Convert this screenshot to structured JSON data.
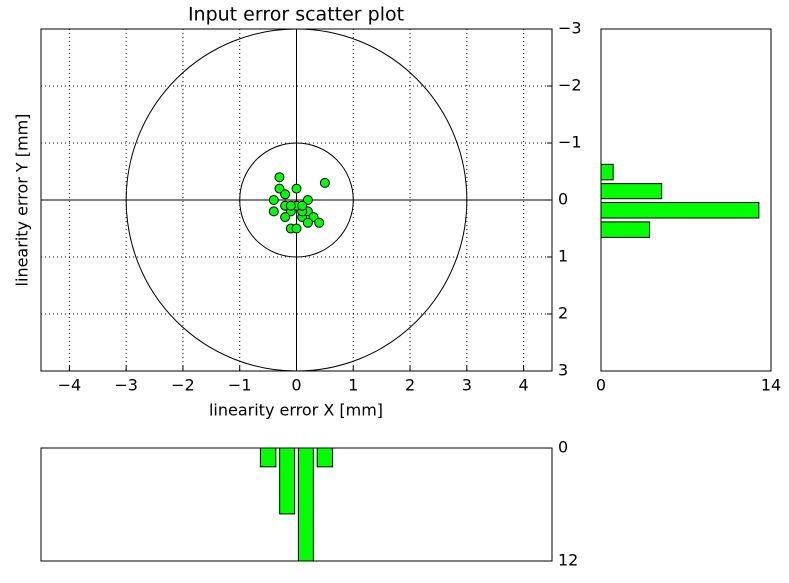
{
  "chart_data": [
    {
      "type": "scatter",
      "title": "Input error scatter plot",
      "x_label": "linearity error X [mm]",
      "y_label": "linearity error Y [mm]",
      "x": [
        -0.3,
        -0.3,
        -0.2,
        0,
        0.5,
        -0.4,
        -0.4,
        -0.2,
        0,
        -0.1,
        -0.2,
        0.1,
        0.2,
        0.2,
        0.3,
        0.4,
        0.2,
        -0.1,
        0,
        0.1,
        0,
        0.1,
        -0.1
      ],
      "y": [
        -0.4,
        -0.2,
        -0.1,
        -0.2,
        -0.3,
        0,
        0.2,
        0.1,
        0.1,
        0.2,
        0.3,
        0.3,
        0,
        0.2,
        0.3,
        0.4,
        0.4,
        0.5,
        0.5,
        0.2,
        0.1,
        0.1,
        0.1
      ],
      "color": "#00ff00",
      "reference_circles": [
        1,
        3
      ],
      "xlim": [
        -4.5,
        4.5
      ],
      "ylim": [
        -3,
        3
      ],
      "y_inverted": true,
      "xticks": [
        {
          "value": -4,
          "label": "−4"
        },
        {
          "value": -3,
          "label": "−3"
        },
        {
          "value": -2,
          "label": "−2"
        },
        {
          "value": -1,
          "label": "−1"
        },
        0,
        1,
        2,
        3,
        4
      ],
      "yticks": [
        {
          "value": -3,
          "label": "−3"
        },
        {
          "value": -2,
          "label": "−2"
        },
        {
          "value": -1,
          "label": "−1"
        },
        0,
        1,
        2,
        3
      ],
      "grid": true
    },
    {
      "type": "histogram",
      "orientation": "horizontal",
      "bins": [
        -0.66,
        -0.32,
        0.01,
        0.35,
        0.69
      ],
      "values": [
        1,
        5,
        13,
        4
      ],
      "color": "#00ff00",
      "xlim": [
        0,
        14
      ],
      "xticks": [
        0,
        14
      ],
      "ylim": [
        -3,
        3
      ],
      "y_inverted": true
    },
    {
      "type": "histogram",
      "orientation": "vertical",
      "bins": [
        -0.67,
        -0.33,
        0,
        0.33,
        0.67
      ],
      "values": [
        2,
        7,
        12,
        2
      ],
      "color": "#00ff00",
      "xlim": [
        -4.5,
        4.5
      ],
      "ylim": [
        0,
        12
      ],
      "yticks": [
        0,
        12
      ],
      "y_inverted": true
    }
  ]
}
